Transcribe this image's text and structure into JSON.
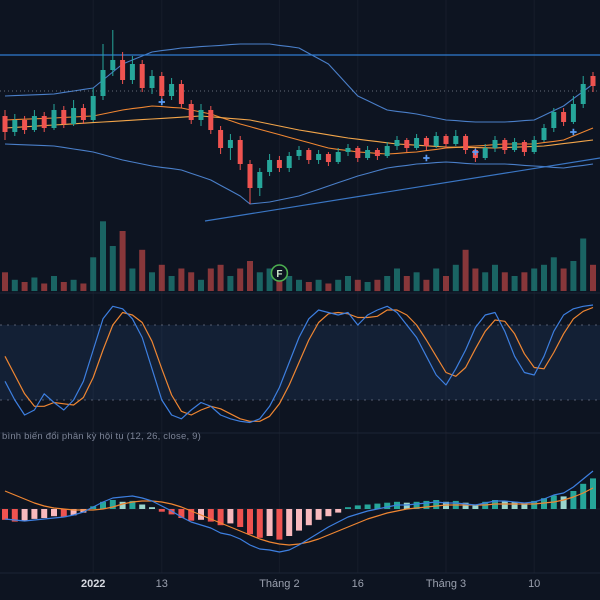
{
  "colors": {
    "background": "#0d1421",
    "up": "#26a69a",
    "down": "#ef5350",
    "volume_up": "rgba(38,166,154,0.55)",
    "volume_down": "rgba(239,83,80,0.55)",
    "bollinger": "#4a7fc9",
    "basis": "#ef8632",
    "ma_slow": "#f2a54a",
    "price_line": "#2f7bd0",
    "dotted_line": "#aeb4c2",
    "trendline": "#3a76c4",
    "stoch_k": "#3d7fe0",
    "stoch_d": "#ef8632",
    "band_fill": "rgba(62,118,193,0.13)",
    "band_border": "#8b93a6",
    "macd_line": "#3d7fe0",
    "macd_signal": "#ef8632",
    "hist_up": "#26a69a",
    "hist_up_weak": "#9cd6cd",
    "hist_down": "#ef5350",
    "hist_down_weak": "#f8b9bd",
    "marker": "#5b9cf6",
    "event_ring": "#4caf50",
    "event_text": "#cdebce",
    "axis_text": "#9aa0ae",
    "axis_text_strong": "#d6d9e0",
    "grid": "rgba(197,203,217,0.05)",
    "separator": "#1c2535",
    "macd_label_color": "#7c8497",
    "zero_line": "rgba(255,255,255,0.06)"
  },
  "chart_data": {
    "type": "candlestick",
    "panels": [
      "price-bollinger-ma",
      "volume",
      "stochastic",
      "macd"
    ],
    "price_ylim": [
      0,
      110
    ],
    "candles": {
      "open": [
        52,
        44,
        50,
        45,
        52,
        46,
        55,
        48,
        56,
        50,
        62,
        75,
        80,
        70,
        78,
        66,
        72,
        62,
        68,
        58,
        50,
        55,
        45,
        36,
        40,
        28,
        16,
        24,
        30,
        26,
        32,
        35,
        30,
        33,
        29,
        34,
        36,
        31,
        35,
        32,
        37,
        40,
        36,
        41,
        37,
        42,
        38,
        42,
        35,
        31,
        36,
        40,
        35,
        39,
        34,
        40,
        46,
        54,
        49,
        58,
        72
      ],
      "high": [
        55,
        53,
        52,
        55,
        54,
        58,
        57,
        60,
        58,
        66,
        88,
        95,
        84,
        82,
        80,
        75,
        74,
        71,
        70,
        60,
        58,
        57,
        47,
        43,
        42,
        30,
        26,
        33,
        32,
        34,
        37,
        36,
        35,
        34,
        36,
        38,
        37,
        37,
        36,
        39,
        42,
        41,
        43,
        42,
        44,
        43,
        45,
        43,
        36,
        38,
        42,
        41,
        41,
        40,
        42,
        48,
        56,
        56,
        62,
        72,
        74
      ],
      "low": [
        40,
        42,
        43,
        44,
        44,
        45,
        46,
        47,
        48,
        49,
        60,
        72,
        68,
        68,
        64,
        63,
        60,
        60,
        56,
        48,
        47,
        43,
        33,
        30,
        25,
        8,
        12,
        22,
        24,
        24,
        30,
        28,
        28,
        27,
        28,
        32,
        29,
        30,
        30,
        31,
        35,
        34,
        35,
        35,
        36,
        36,
        37,
        33,
        29,
        30,
        34,
        33,
        34,
        32,
        33,
        39,
        44,
        47,
        48,
        56,
        64
      ],
      "close": [
        44,
        50,
        45,
        52,
        46,
        55,
        48,
        56,
        50,
        62,
        75,
        80,
        70,
        78,
        66,
        72,
        62,
        68,
        58,
        50,
        55,
        45,
        36,
        40,
        28,
        16,
        24,
        30,
        26,
        32,
        35,
        30,
        33,
        29,
        34,
        36,
        31,
        35,
        32,
        37,
        40,
        36,
        41,
        37,
        42,
        38,
        42,
        35,
        31,
        36,
        40,
        35,
        39,
        34,
        40,
        46,
        54,
        49,
        58,
        68,
        67
      ]
    },
    "bollinger": {
      "upper": [
        62,
        62.2,
        62.4,
        62.6,
        62.8,
        63,
        63.8,
        64.5,
        65.3,
        66,
        70,
        74,
        78,
        80,
        82,
        84,
        84.7,
        85.3,
        86,
        86.3,
        86.7,
        87,
        87.3,
        87.7,
        88,
        88,
        88,
        88,
        87.3,
        86.7,
        86,
        83.3,
        80.7,
        78,
        72.7,
        67.3,
        62,
        59.7,
        57.3,
        55,
        54.3,
        53.7,
        53,
        52,
        51,
        50,
        49.7,
        49.3,
        49,
        49,
        49,
        49,
        49.3,
        49.7,
        50,
        52.3,
        54.7,
        57,
        60.7,
        64.3,
        68
      ],
      "basis": [
        50,
        50.2,
        50.4,
        50.6,
        50.8,
        51,
        51.3,
        51.5,
        51.8,
        52,
        53,
        54,
        55,
        55.7,
        56.3,
        57,
        56.7,
        56.3,
        56,
        55,
        54,
        53,
        51.3,
        49.7,
        48,
        46.7,
        45.3,
        44,
        42.7,
        41.3,
        40,
        38.7,
        37.3,
        36,
        35.3,
        34.7,
        34,
        33.7,
        33.3,
        33,
        33.3,
        33.7,
        34,
        34.7,
        35.3,
        36,
        36.3,
        36.7,
        37,
        37.3,
        37.7,
        38,
        38,
        38,
        38,
        38.7,
        39.3,
        40,
        42,
        44,
        46
      ],
      "lower": [
        38,
        37.8,
        37.6,
        37.4,
        37.2,
        37,
        36.3,
        35.5,
        34.8,
        34,
        32.7,
        31.3,
        30,
        29,
        28,
        27,
        26.3,
        25.7,
        25,
        23.3,
        21.7,
        20,
        17.3,
        14.7,
        12,
        8,
        8.5,
        9,
        10,
        11,
        12,
        13.7,
        15.3,
        17,
        18.7,
        20.3,
        22,
        23.3,
        24.7,
        26,
        26.7,
        27.3,
        28,
        28.3,
        28.7,
        29,
        28.7,
        28.3,
        28,
        28,
        28,
        28,
        27.7,
        27.3,
        27,
        26.7,
        26.3,
        26,
        26.7,
        27.3,
        28
      ]
    },
    "ma_slow": [
      46,
      46.3,
      46.6,
      46.9,
      47.2,
      47.5,
      47.8,
      48.1,
      48.4,
      48.7,
      49,
      49.3,
      49.6,
      49.9,
      50.2,
      50.5,
      50.8,
      51.1,
      51.4,
      51.7,
      52,
      51.6,
      51.2,
      50.8,
      50.4,
      50,
      49,
      48,
      47,
      46,
      45,
      44.2,
      43.4,
      42.6,
      41.8,
      41,
      40.4,
      39.8,
      39.2,
      38.6,
      38,
      37.7,
      37.4,
      37.1,
      36.8,
      36.5,
      36.4,
      36.3,
      36.2,
      36.1,
      36,
      36.2,
      36.4,
      36.6,
      36.8,
      37,
      37.6,
      38.2,
      38.8,
      39.4,
      40
    ],
    "price_line_level": 82.5,
    "dotted_line_level": 64.5,
    "trendline": {
      "x1": 205,
      "price1": -0.5,
      "x2": 600,
      "price2": 31
    },
    "markers": [
      {
        "index": 16,
        "price": 59
      },
      {
        "index": 43,
        "price": 31
      },
      {
        "index": 48,
        "price": 34
      },
      {
        "index": 58,
        "price": 44
      }
    ],
    "event_marker": {
      "index": 28,
      "label": "F"
    },
    "volume": {
      "values": [
        25,
        15,
        12,
        18,
        10,
        20,
        12,
        15,
        10,
        45,
        93,
        60,
        80,
        30,
        55,
        25,
        35,
        20,
        30,
        25,
        15,
        30,
        35,
        20,
        30,
        40,
        25,
        30,
        15,
        20,
        15,
        12,
        15,
        10,
        15,
        20,
        15,
        12,
        15,
        20,
        30,
        20,
        25,
        15,
        30,
        20,
        35,
        55,
        30,
        25,
        35,
        25,
        20,
        25,
        30,
        35,
        45,
        30,
        40,
        70,
        35
      ]
    },
    "stochastic": {
      "overbought": 80,
      "oversold": 20,
      "k": [
        35,
        20,
        8,
        12,
        25,
        18,
        12,
        20,
        35,
        60,
        85,
        95,
        93,
        85,
        70,
        45,
        20,
        8,
        5,
        12,
        18,
        15,
        8,
        5,
        3,
        2,
        5,
        15,
        30,
        50,
        70,
        85,
        92,
        90,
        88,
        90,
        80,
        88,
        92,
        95,
        90,
        80,
        70,
        55,
        40,
        32,
        45,
        60,
        78,
        88,
        90,
        75,
        55,
        42,
        40,
        55,
        75,
        88,
        93,
        95,
        96
      ],
      "d": [
        55,
        40,
        25,
        15,
        15,
        18,
        17,
        16,
        22,
        38,
        60,
        80,
        90,
        88,
        82,
        67,
        45,
        24,
        11,
        8,
        12,
        15,
        13,
        9,
        5,
        3,
        3,
        7,
        17,
        32,
        50,
        68,
        82,
        89,
        90,
        89,
        86,
        86,
        87,
        92,
        92,
        88,
        80,
        68,
        55,
        42,
        39,
        46,
        61,
        75,
        84,
        83,
        73,
        57,
        46,
        45,
        58,
        73,
        85,
        91,
        94
      ],
      "ylim": [
        0,
        100
      ]
    },
    "macd": {
      "label": "bình biến đổi phân kỳ hội tụ (12, 26, close, 9)",
      "macd": [
        -10,
        -11,
        -12,
        -11,
        -10,
        -9,
        -8,
        -6,
        -3,
        2,
        7,
        11,
        12,
        13,
        11,
        8,
        3,
        -2,
        -8,
        -13,
        -16,
        -19,
        -24,
        -26,
        -30,
        -36,
        -40,
        -41,
        -43,
        -41,
        -36,
        -30,
        -24,
        -18,
        -13,
        -8,
        -5,
        -2,
        0,
        2,
        4,
        4,
        5,
        6,
        7,
        6,
        6,
        5,
        4,
        6,
        8,
        8,
        7,
        6,
        7,
        10,
        14,
        16,
        22,
        30,
        38
      ],
      "signal": [
        18,
        14,
        10,
        6,
        3,
        1,
        0,
        -1,
        -1,
        -1,
        0,
        2,
        5,
        7,
        8,
        8,
        7,
        5,
        2,
        -2,
        -6,
        -10,
        -14,
        -18,
        -22,
        -26,
        -30,
        -33,
        -35,
        -36,
        -35,
        -33,
        -30,
        -26,
        -22,
        -18,
        -14,
        -10,
        -7,
        -4,
        -2,
        0,
        1,
        2,
        3,
        4,
        4,
        4,
        4,
        4,
        5,
        5,
        5,
        5,
        5,
        6,
        7,
        9,
        12,
        16,
        21
      ],
      "histogram": [
        -12,
        -14,
        -13,
        -11,
        -10,
        -8,
        -9,
        -7,
        -4,
        3,
        8,
        10,
        8,
        9,
        5,
        2,
        -3,
        -6,
        -10,
        -13,
        -12,
        -14,
        -18,
        -16,
        -20,
        -28,
        -32,
        -30,
        -34,
        -30,
        -24,
        -18,
        -12,
        -8,
        -4,
        2,
        4,
        5,
        6,
        7,
        8,
        7,
        8,
        9,
        10,
        8,
        9,
        7,
        5,
        8,
        10,
        9,
        8,
        7,
        9,
        12,
        15,
        14,
        20,
        28,
        34
      ]
    },
    "x_axis": {
      "ticks": [
        {
          "index": 9,
          "label": "2022",
          "strong": true
        },
        {
          "index": 16,
          "label": "13"
        },
        {
          "index": 28,
          "label": "Tháng 2"
        },
        {
          "index": 36,
          "label": "16"
        },
        {
          "index": 45,
          "label": "Tháng 3"
        },
        {
          "index": 54,
          "label": "10"
        }
      ]
    }
  }
}
